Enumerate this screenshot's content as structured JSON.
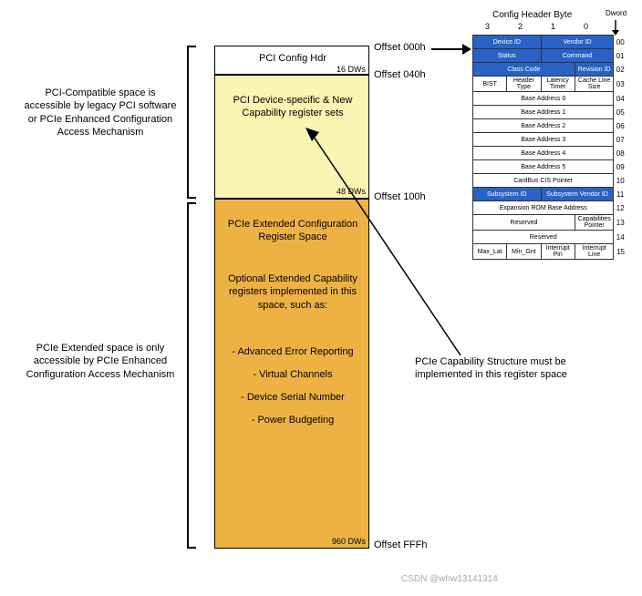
{
  "colors": {
    "hdr_fill": "#ffffff",
    "yellow": "#fcf4b2",
    "orange": "#eeb244",
    "blue": "#2962c4",
    "border": "#000000"
  },
  "leftText1": "PCI-Compatible space is accessible by legacy PCI software or PCIe Enhanced Configuration Access Mechanism",
  "leftText2": "PCIe Extended space is only accessible by PCIe Enhanced Configuration Access Mechanism",
  "rightText": "PCIe Capability Structure must be implemented in this register space",
  "region1": {
    "title": "PCI Config Hdr",
    "dws": "16 DWs"
  },
  "region2": {
    "title": "PCI Device-specific & New Capability register sets",
    "dws": "48 DWs"
  },
  "region3": {
    "title": "PCIe Extended Configuration Register Space",
    "sub": "Optional Extended Capability registers implemented in this space, such as:",
    "items": [
      "- Advanced Error Reporting",
      "- Virtual Channels",
      "- Device Serial Number",
      "- Power Budgeting"
    ],
    "dws": "960 DWs"
  },
  "offsets": [
    "Offset 000h",
    "Offset 040h",
    "Offset 100h",
    "Offset FFFh"
  ],
  "hdrTitle": "Config Header Byte",
  "dword": "Dword",
  "bytes": [
    "3",
    "2",
    "1",
    "0"
  ],
  "hdrRows": [
    {
      "cells": [
        [
          "Device ID",
          2,
          "b"
        ],
        [
          "Vendor ID",
          2,
          "b"
        ]
      ],
      "dw": "00"
    },
    {
      "cells": [
        [
          "Status",
          2,
          "b"
        ],
        [
          "Command",
          2,
          "b"
        ]
      ],
      "dw": "01"
    },
    {
      "cells": [
        [
          "Class Code",
          3,
          "b"
        ],
        [
          "Revision ID",
          1,
          "b"
        ]
      ],
      "dw": "02"
    },
    {
      "cells": [
        [
          "BIST",
          1,
          ""
        ],
        [
          "Header Type",
          1,
          ""
        ],
        [
          "Latency Timer",
          1,
          ""
        ],
        [
          "Cache Line Size",
          1,
          ""
        ]
      ],
      "dw": "03"
    },
    {
      "cells": [
        [
          "Base Address 0",
          4,
          ""
        ]
      ],
      "dw": "04"
    },
    {
      "cells": [
        [
          "Base Address 1",
          4,
          ""
        ]
      ],
      "dw": "05"
    },
    {
      "cells": [
        [
          "Base Address 2",
          4,
          ""
        ]
      ],
      "dw": "06"
    },
    {
      "cells": [
        [
          "Base Address 3",
          4,
          ""
        ]
      ],
      "dw": "07"
    },
    {
      "cells": [
        [
          "Base Address 4",
          4,
          ""
        ]
      ],
      "dw": "08"
    },
    {
      "cells": [
        [
          "Base Address 5",
          4,
          ""
        ]
      ],
      "dw": "09"
    },
    {
      "cells": [
        [
          "CardBus CIS Pointer",
          4,
          ""
        ]
      ],
      "dw": "10"
    },
    {
      "cells": [
        [
          "Subsystem ID",
          2,
          "b"
        ],
        [
          "Subsystem Vendor ID",
          2,
          "b"
        ]
      ],
      "dw": "11"
    },
    {
      "cells": [
        [
          "Expansion ROM Base Address",
          4,
          ""
        ]
      ],
      "dw": "12"
    },
    {
      "cells": [
        [
          "Reserved",
          3,
          ""
        ],
        [
          "Capabilities Pointer",
          1,
          ""
        ]
      ],
      "dw": "13"
    },
    {
      "cells": [
        [
          "Reserved",
          4,
          ""
        ]
      ],
      "dw": "14"
    },
    {
      "cells": [
        [
          "Max_Lat",
          1,
          ""
        ],
        [
          "Min_Gnt",
          1,
          ""
        ],
        [
          "Interrupt Pin",
          1,
          ""
        ],
        [
          "Interrupt Line",
          1,
          ""
        ]
      ],
      "dw": "15"
    }
  ],
  "watermark": "CSDN @whw13141314"
}
